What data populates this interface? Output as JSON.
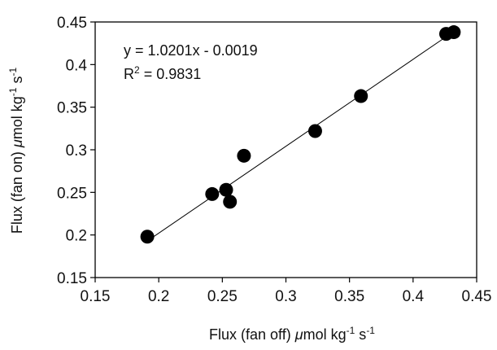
{
  "chart_data": {
    "type": "scatter",
    "title": "",
    "xlabel": {
      "prefix": "Flux (fan off) ",
      "mu": "μ",
      "rest": "mol kg",
      "sup1": "-1",
      "mid": " s",
      "sup2": "-1"
    },
    "ylabel": {
      "prefix": "Flux (fan on) ",
      "mu": "μ",
      "rest": "mol kg",
      "sup1": "-1",
      "mid": " s",
      "sup2": "-1"
    },
    "xlim": [
      0.15,
      0.45
    ],
    "ylim": [
      0.15,
      0.45
    ],
    "xticks": [
      "0.15",
      "0.2",
      "0.25",
      "0.3",
      "0.35",
      "0.4",
      "0.45"
    ],
    "yticks": [
      "0.15",
      "0.2",
      "0.25",
      "0.3",
      "0.35",
      "0.4",
      "0.45"
    ],
    "grid": false,
    "points": [
      {
        "x": 0.191,
        "y": 0.198
      },
      {
        "x": 0.242,
        "y": 0.248
      },
      {
        "x": 0.253,
        "y": 0.253
      },
      {
        "x": 0.256,
        "y": 0.239
      },
      {
        "x": 0.267,
        "y": 0.293
      },
      {
        "x": 0.323,
        "y": 0.322
      },
      {
        "x": 0.359,
        "y": 0.363
      },
      {
        "x": 0.426,
        "y": 0.436
      },
      {
        "x": 0.432,
        "y": 0.438
      }
    ],
    "trendline": {
      "slope": 1.0201,
      "intercept": -0.0019,
      "x_range": [
        0.191,
        0.432
      ]
    },
    "annotations": {
      "equation": "y = 1.0201x - 0.0019",
      "r2_prefix": "R",
      "r2_sup": "2",
      "r2_value": " = 0.9831"
    }
  }
}
